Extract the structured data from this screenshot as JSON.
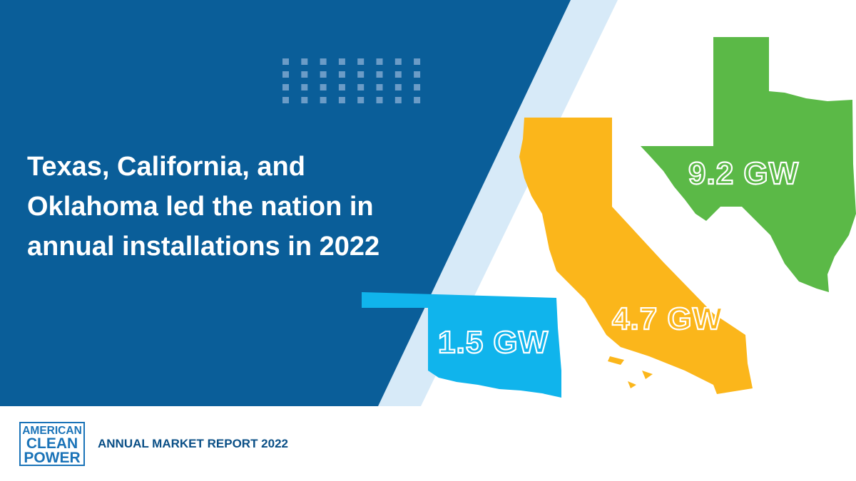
{
  "headline": {
    "lines": [
      "Texas, California, and",
      "Oklahoma led the nation in",
      "annual installations in 2022"
    ]
  },
  "states": [
    {
      "label": "9.2 GW"
    },
    {
      "label": "4.7 GW"
    },
    {
      "label": "1.5 GW"
    }
  ],
  "logo": {
    "lines": [
      "AMERICAN",
      "CLEAN",
      "POWER"
    ]
  },
  "footer": {
    "title": "ANNUAL MARKET REPORT 2022"
  }
}
